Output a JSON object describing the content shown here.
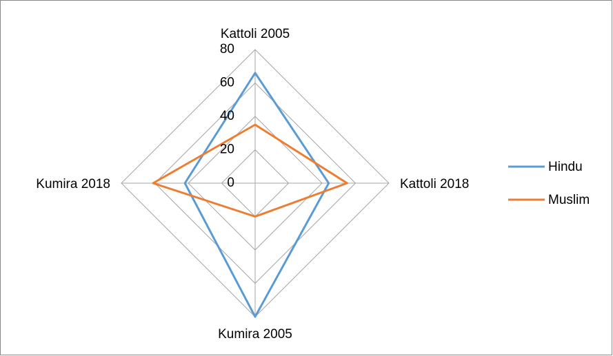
{
  "chart_data": {
    "type": "radar",
    "categories": [
      "Kattoli 2005",
      "Kattoli 2018",
      "Kumira 2005",
      "Kumira 2018"
    ],
    "series": [
      {
        "name": "Hindu",
        "color": "#5b9bd5",
        "values": [
          66,
          44,
          80,
          42
        ]
      },
      {
        "name": "Muslim",
        "color": "#ed7d31",
        "values": [
          35,
          55,
          20,
          61
        ]
      }
    ],
    "ylim": [
      0,
      80
    ],
    "yticks": [
      0,
      20,
      40,
      60,
      80
    ],
    "grid": true,
    "legend": "right"
  }
}
